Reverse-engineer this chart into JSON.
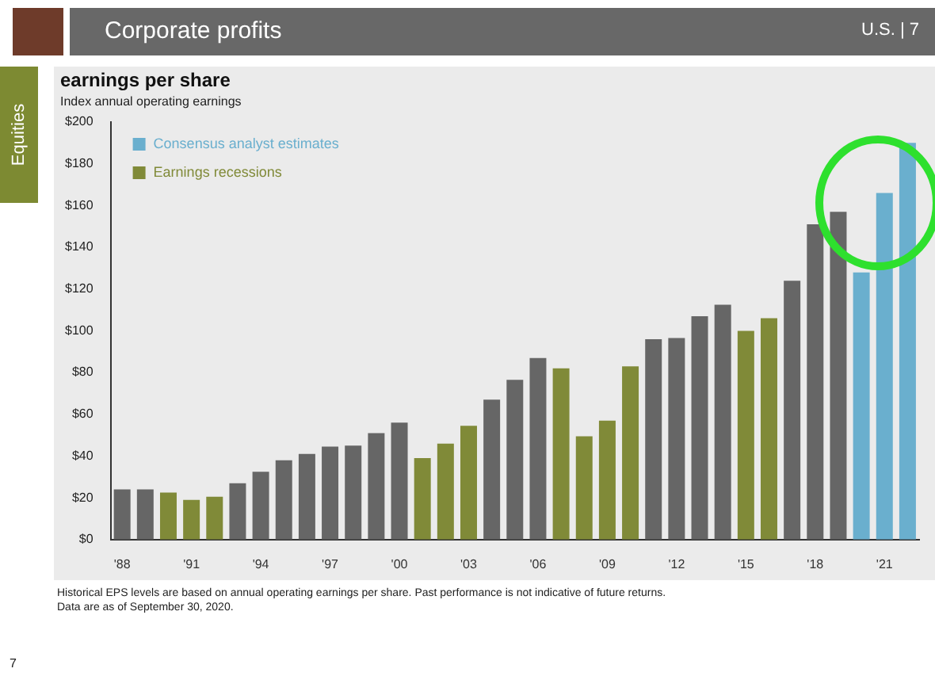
{
  "chart_data": {
    "type": "bar",
    "title": "earnings per share",
    "subtitle": "Index annual operating earnings",
    "categories": [
      "'88",
      null,
      null,
      "'91",
      null,
      null,
      "'94",
      null,
      null,
      "'97",
      null,
      null,
      "'00",
      null,
      null,
      "'03",
      null,
      null,
      "'06",
      null,
      null,
      "'09",
      null,
      null,
      "'12",
      null,
      null,
      "'15",
      null,
      null,
      "'18",
      null,
      null,
      "'21",
      null
    ],
    "series": [
      {
        "color": "#666666",
        "values": [
          24,
          24,
          null,
          null,
          null,
          27,
          32.5,
          38,
          41,
          44.5,
          45,
          51,
          56,
          null,
          null,
          null,
          67,
          76.5,
          87,
          null,
          null,
          null,
          null,
          96,
          96.5,
          107,
          112.5,
          null,
          null,
          124,
          151,
          157,
          null,
          null,
          null
        ]
      },
      {
        "name": "Earnings recessions",
        "color": "#808a38",
        "values": [
          null,
          null,
          22.5,
          19,
          20.5,
          null,
          null,
          null,
          null,
          null,
          null,
          null,
          null,
          39,
          46,
          54.5,
          null,
          null,
          null,
          82,
          49.5,
          57,
          83,
          null,
          null,
          null,
          null,
          100,
          106,
          null,
          null,
          null,
          null,
          null,
          null
        ]
      },
      {
        "name": "Consensus analyst estimates",
        "color": "#6aafce",
        "values": [
          null,
          null,
          null,
          null,
          null,
          null,
          null,
          null,
          null,
          null,
          null,
          null,
          null,
          null,
          null,
          null,
          null,
          null,
          null,
          null,
          null,
          null,
          null,
          null,
          null,
          null,
          null,
          null,
          null,
          null,
          null,
          null,
          128,
          166,
          190
        ]
      }
    ],
    "ylim": [
      0,
      200
    ],
    "yticks": [
      {
        "value": 0,
        "label": "$0"
      },
      {
        "value": 20,
        "label": "$20"
      },
      {
        "value": 40,
        "label": "$40"
      },
      {
        "value": 60,
        "label": "$60"
      },
      {
        "value": 80,
        "label": "$80"
      },
      {
        "value": 100,
        "label": "$100"
      },
      {
        "value": 120,
        "label": "$120"
      },
      {
        "value": 140,
        "label": "$140"
      },
      {
        "value": 160,
        "label": "$160"
      },
      {
        "value": 180,
        "label": "$180"
      },
      {
        "value": 200,
        "label": "$200"
      }
    ],
    "grid": false,
    "legend": "top left",
    "annotations": [
      "Corporate profits",
      "U.S.  |  7",
      "Equities",
      "Historical EPS levels are based on annual operating earnings per share. Past performance is not indicative of future returns.",
      "Data are as of September 30, 2020.",
      "7"
    ]
  }
}
